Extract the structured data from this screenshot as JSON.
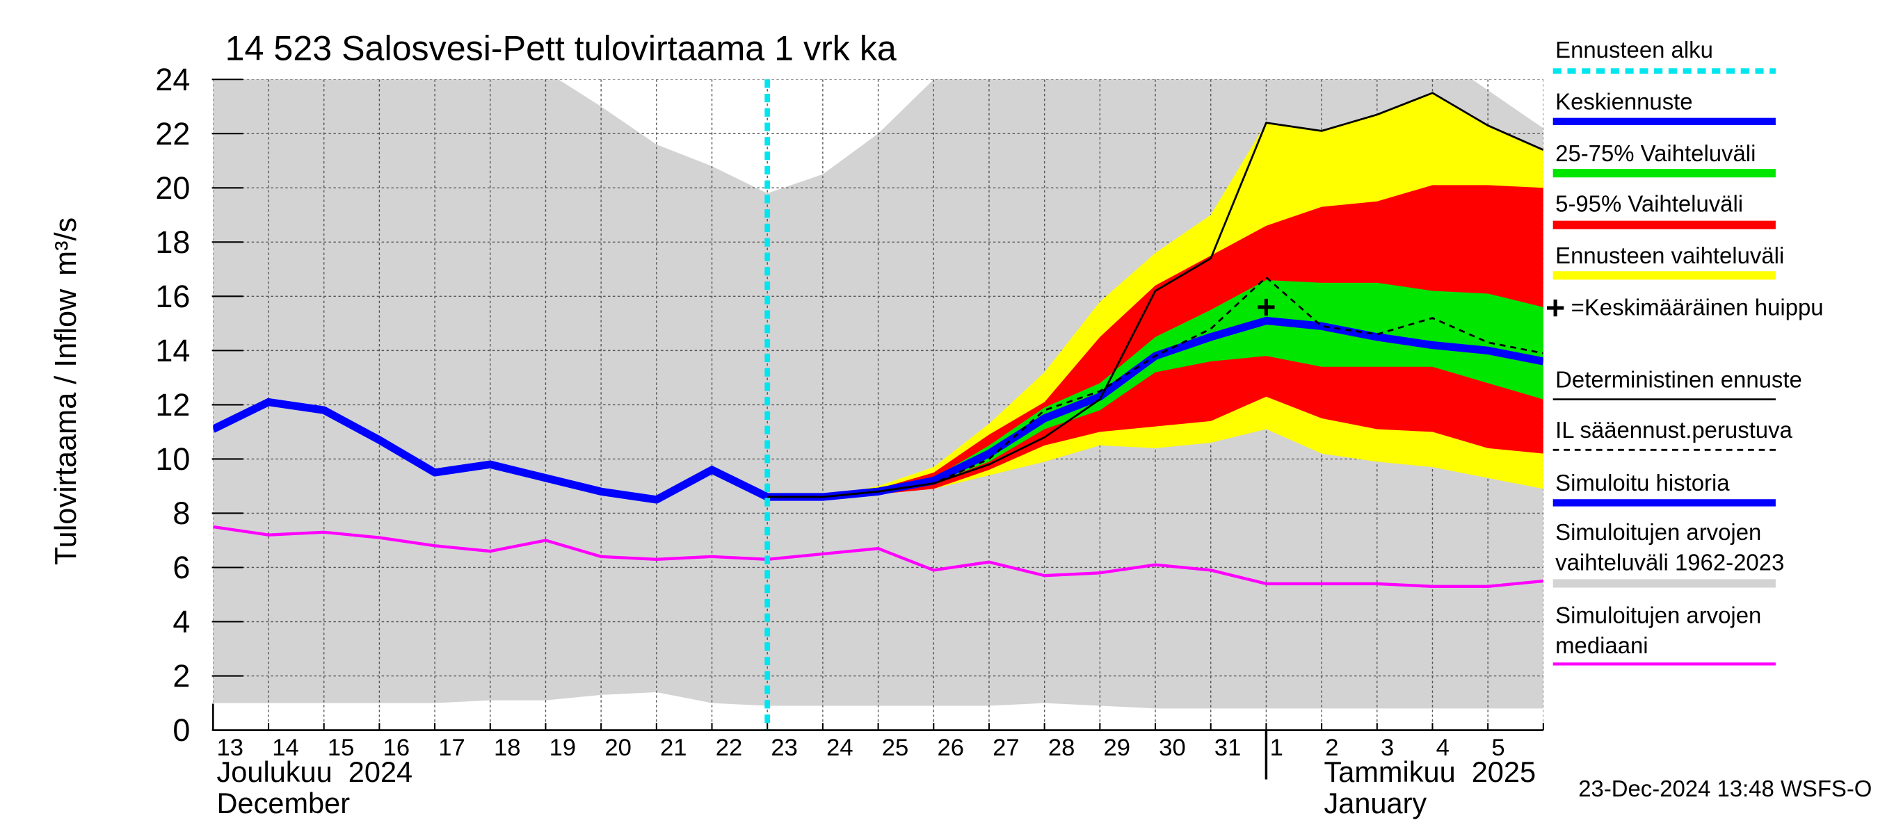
{
  "chart_data": {
    "type": "line",
    "title": "14 523 Salosvesi-Pett tulovirtaama 1 vrk ka",
    "y_label": "Tulovirtaama / Inflow",
    "y_unit": "m³/s",
    "categories": [
      "13",
      "14",
      "15",
      "16",
      "17",
      "18",
      "19",
      "20",
      "21",
      "22",
      "23",
      "24",
      "25",
      "26",
      "27",
      "28",
      "29",
      "30",
      "31",
      "1",
      "2",
      "3",
      "4",
      "5",
      null
    ],
    "month_labels": [
      "Joulukuu  2024",
      "December",
      "Tammikuu  2025",
      "January"
    ],
    "footer": "23-Dec-2024 13:48 WSFS-O",
    "ylim": [
      0,
      24
    ],
    "yticks": [
      0,
      2,
      4,
      6,
      8,
      10,
      12,
      14,
      16,
      18,
      20,
      22,
      24
    ],
    "grid": true,
    "forecast_start": {
      "name": "Ennusteen alku",
      "x": 10,
      "color": "#00e5ee"
    },
    "peak": {
      "name": "=Keskimääräinen huippu",
      "x": 19,
      "value": 15.6,
      "color": "#000000"
    },
    "series": [
      {
        "name": "Keskiennuste",
        "style": "thick",
        "color": "#0000ff",
        "values": [
          null,
          null,
          null,
          null,
          null,
          null,
          null,
          null,
          null,
          null,
          8.6,
          8.6,
          8.8,
          9.2,
          10.2,
          11.5,
          12.3,
          13.8,
          14.5,
          15.1,
          14.9,
          14.5,
          14.2,
          14.0,
          13.6
        ]
      },
      {
        "name": "25-75% Vaihteluväli",
        "style": "band",
        "color": "#00e600",
        "low": [
          null,
          null,
          null,
          null,
          null,
          null,
          null,
          null,
          null,
          null,
          8.6,
          8.6,
          8.8,
          9.1,
          9.9,
          11.1,
          11.8,
          13.2,
          13.6,
          13.8,
          13.4,
          13.4,
          13.4,
          12.8,
          12.2
        ],
        "high": [
          null,
          null,
          null,
          null,
          null,
          null,
          null,
          null,
          null,
          null,
          8.6,
          8.6,
          8.8,
          9.3,
          10.5,
          11.9,
          12.8,
          14.5,
          15.5,
          16.6,
          16.5,
          16.5,
          16.2,
          16.1,
          15.6
        ]
      },
      {
        "name": "5-95% Vaihteluväli",
        "style": "band",
        "color": "#ff0000",
        "low": [
          null,
          null,
          null,
          null,
          null,
          null,
          null,
          null,
          null,
          null,
          8.6,
          8.6,
          8.7,
          8.9,
          9.6,
          10.5,
          11.0,
          11.2,
          11.4,
          12.3,
          11.5,
          11.1,
          11.0,
          10.4,
          10.2
        ],
        "high": [
          null,
          null,
          null,
          null,
          null,
          null,
          null,
          null,
          null,
          null,
          8.6,
          8.6,
          8.9,
          9.5,
          10.9,
          12.1,
          14.5,
          16.4,
          17.5,
          18.6,
          19.3,
          19.5,
          20.1,
          20.1,
          20.0
        ]
      },
      {
        "name": "Ennusteen vaihteluväli",
        "style": "band",
        "color": "#ffff00",
        "low": [
          null,
          null,
          null,
          null,
          null,
          null,
          null,
          null,
          null,
          null,
          8.6,
          8.6,
          8.7,
          8.9,
          9.4,
          9.9,
          10.5,
          10.4,
          10.6,
          11.1,
          10.2,
          9.9,
          9.7,
          9.3,
          8.9
        ],
        "high": [
          null,
          null,
          null,
          null,
          null,
          null,
          null,
          null,
          null,
          null,
          8.6,
          8.6,
          9.0,
          9.7,
          11.3,
          13.2,
          15.8,
          17.6,
          19.0,
          22.4,
          22.1,
          22.7,
          23.5,
          22.3,
          21.4
        ]
      },
      {
        "name": "Deterministinen ennuste",
        "style": "thin",
        "color": "#000000",
        "values": [
          null,
          null,
          null,
          null,
          null,
          null,
          null,
          null,
          null,
          null,
          8.6,
          8.6,
          8.8,
          9.1,
          9.8,
          10.8,
          12.2,
          16.2,
          17.4,
          22.4,
          22.1,
          22.7,
          23.5,
          22.3,
          21.4
        ]
      },
      {
        "name": "IL sääennust.perustuva",
        "style": "dashed",
        "color": "#000000",
        "values": [
          null,
          null,
          null,
          null,
          null,
          null,
          null,
          null,
          null,
          null,
          8.6,
          8.6,
          8.8,
          9.1,
          10.0,
          11.8,
          12.5,
          13.8,
          14.8,
          16.7,
          14.9,
          14.6,
          15.2,
          14.3,
          13.9
        ]
      },
      {
        "name": "Simuloitu historia",
        "style": "thick",
        "color": "#0000ff",
        "values": [
          11.1,
          12.1,
          11.8,
          10.7,
          9.5,
          9.8,
          9.3,
          8.8,
          8.5,
          9.6,
          8.6,
          null,
          null,
          null,
          null,
          null,
          null,
          null,
          null,
          null,
          null,
          null,
          null,
          null,
          null
        ]
      },
      {
        "name": "Simuloitujen arvojen vaihteluväli 1962-2023",
        "style": "band",
        "color": "#d3d3d3",
        "low": [
          1.0,
          1.0,
          1.0,
          1.0,
          1.0,
          1.1,
          1.1,
          1.3,
          1.4,
          1.0,
          0.9,
          0.9,
          0.9,
          0.9,
          0.9,
          1.0,
          0.9,
          0.8,
          0.8,
          0.8,
          0.8,
          0.8,
          0.8,
          0.8,
          0.8
        ],
        "high": [
          25.0,
          25.0,
          25.0,
          25.0,
          25.0,
          25.0,
          24.3,
          23.0,
          21.6,
          20.8,
          19.8,
          20.5,
          22.0,
          24.0,
          25.0,
          25.0,
          25.0,
          25.0,
          25.0,
          25.0,
          25.0,
          25.0,
          25.0,
          23.6,
          22.2
        ]
      },
      {
        "name": "Simuloitujen arvojen mediaani",
        "style": "medium",
        "color": "#ff00ff",
        "values": [
          7.5,
          7.2,
          7.3,
          7.1,
          6.8,
          6.6,
          7.0,
          6.4,
          6.3,
          6.4,
          6.3,
          6.5,
          6.7,
          5.9,
          6.2,
          5.7,
          5.8,
          6.1,
          5.9,
          5.4,
          5.4,
          5.4,
          5.3,
          5.3,
          5.5
        ]
      }
    ]
  }
}
